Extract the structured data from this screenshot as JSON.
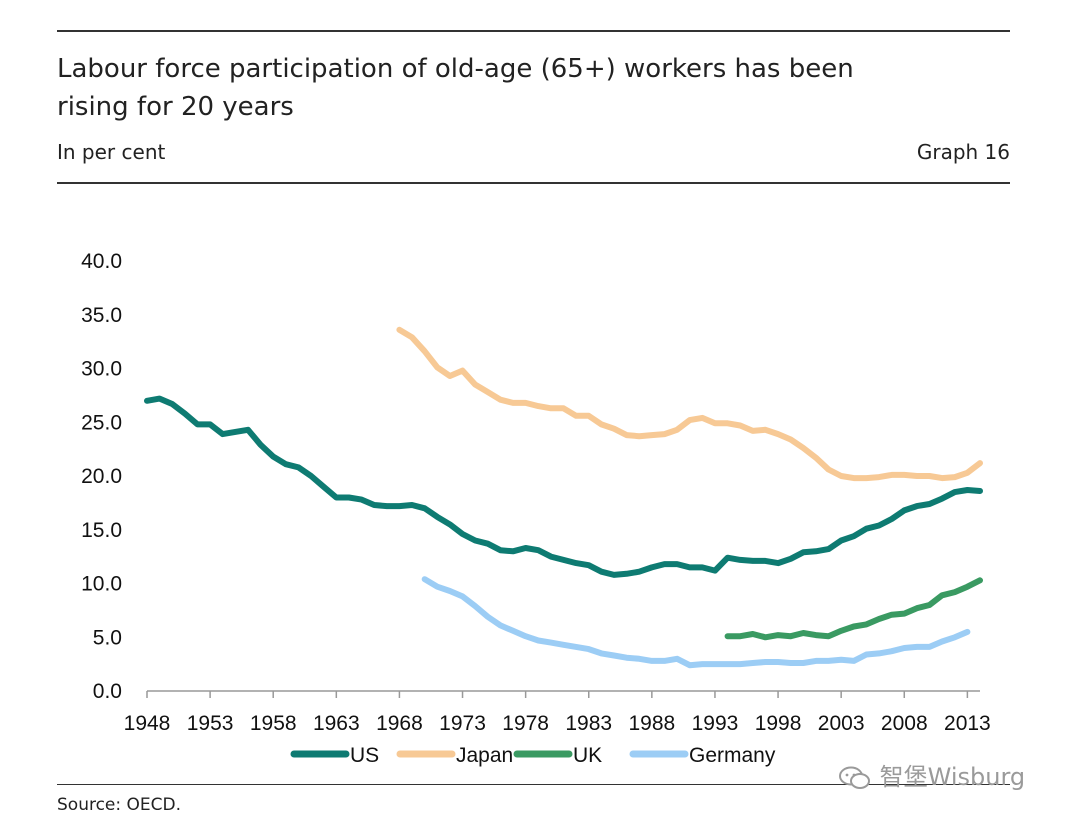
{
  "header": {
    "title": "Labour force participation of old-age (65+) workers has been rising for 20 years",
    "subtitle": "In per cent",
    "graph_number": "Graph 16"
  },
  "footer": {
    "source": "Source: OECD.",
    "watermark": "智堡Wisburg"
  },
  "chart_data": {
    "type": "line",
    "title": "Labour force participation of old-age (65+) workers has been rising for 20 years",
    "ylabel": "In per cent",
    "xlim": [
      1948,
      2014
    ],
    "ylim": [
      0,
      40
    ],
    "yticks": [
      "0.0",
      "5.0",
      "10.0",
      "15.0",
      "20.0",
      "25.0",
      "30.0",
      "35.0",
      "40.0"
    ],
    "xticks": [
      "1948",
      "1953",
      "1958",
      "1963",
      "1968",
      "1973",
      "1978",
      "1983",
      "1988",
      "1993",
      "1998",
      "2003",
      "2008",
      "2013"
    ],
    "legend_position": "bottom",
    "series": [
      {
        "name": "US",
        "color": "#0e7b72",
        "x": [
          1948,
          1949,
          1950,
          1951,
          1952,
          1953,
          1954,
          1955,
          1956,
          1957,
          1958,
          1959,
          1960,
          1961,
          1962,
          1963,
          1964,
          1965,
          1966,
          1967,
          1968,
          1969,
          1970,
          1971,
          1972,
          1973,
          1974,
          1975,
          1976,
          1977,
          1978,
          1979,
          1980,
          1981,
          1982,
          1983,
          1984,
          1985,
          1986,
          1987,
          1988,
          1989,
          1990,
          1991,
          1992,
          1993,
          1994,
          1995,
          1996,
          1997,
          1998,
          1999,
          2000,
          2001,
          2002,
          2003,
          2004,
          2005,
          2006,
          2007,
          2008,
          2009,
          2010,
          2011,
          2012,
          2013,
          2014
        ],
        "values": [
          27.0,
          27.2,
          26.7,
          25.8,
          24.8,
          24.8,
          23.9,
          24.1,
          24.3,
          22.9,
          21.8,
          21.1,
          20.8,
          20.0,
          19.0,
          18.0,
          18.0,
          17.8,
          17.3,
          17.2,
          17.2,
          17.3,
          17.0,
          16.2,
          15.5,
          14.6,
          14.0,
          13.7,
          13.1,
          13.0,
          13.3,
          13.1,
          12.5,
          12.2,
          11.9,
          11.7,
          11.1,
          10.8,
          10.9,
          11.1,
          11.5,
          11.8,
          11.8,
          11.5,
          11.5,
          11.2,
          12.4,
          12.2,
          12.1,
          12.1,
          11.9,
          12.3,
          12.9,
          13.0,
          13.2,
          14.0,
          14.4,
          15.1,
          15.4,
          16.0,
          16.8,
          17.2,
          17.4,
          17.9,
          18.5,
          18.7,
          18.6
        ]
      },
      {
        "name": "Japan",
        "color": "#f7c995",
        "x": [
          1968,
          1969,
          1970,
          1971,
          1972,
          1973,
          1974,
          1975,
          1976,
          1977,
          1978,
          1979,
          1980,
          1981,
          1982,
          1983,
          1984,
          1985,
          1986,
          1987,
          1988,
          1989,
          1990,
          1991,
          1992,
          1993,
          1994,
          1995,
          1996,
          1997,
          1998,
          1999,
          2000,
          2001,
          2002,
          2003,
          2004,
          2005,
          2006,
          2007,
          2008,
          2009,
          2010,
          2011,
          2012,
          2013,
          2014
        ],
        "values": [
          33.6,
          32.9,
          31.6,
          30.1,
          29.3,
          29.8,
          28.5,
          27.8,
          27.1,
          26.8,
          26.8,
          26.5,
          26.3,
          26.3,
          25.6,
          25.6,
          24.8,
          24.4,
          23.8,
          23.7,
          23.8,
          23.9,
          24.3,
          25.2,
          25.4,
          24.9,
          24.9,
          24.7,
          24.2,
          24.3,
          23.9,
          23.4,
          22.6,
          21.7,
          20.6,
          20.0,
          19.8,
          19.8,
          19.9,
          20.1,
          20.1,
          20.0,
          20.0,
          19.8,
          19.9,
          20.3,
          21.2
        ]
      },
      {
        "name": "UK",
        "color": "#3a9a62",
        "x": [
          1994,
          1995,
          1996,
          1997,
          1998,
          1999,
          2000,
          2001,
          2002,
          2003,
          2004,
          2005,
          2006,
          2007,
          2008,
          2009,
          2010,
          2011,
          2012,
          2013,
          2014
        ],
        "values": [
          5.1,
          5.1,
          5.3,
          5.0,
          5.2,
          5.1,
          5.4,
          5.2,
          5.1,
          5.6,
          6.0,
          6.2,
          6.7,
          7.1,
          7.2,
          7.7,
          8.0,
          8.9,
          9.2,
          9.7,
          10.3
        ]
      },
      {
        "name": "Germany",
        "color": "#9ccdf5",
        "x": [
          1970,
          1971,
          1972,
          1973,
          1974,
          1975,
          1976,
          1977,
          1978,
          1979,
          1980,
          1981,
          1982,
          1983,
          1984,
          1985,
          1986,
          1987,
          1988,
          1989,
          1990,
          1991,
          1992,
          1993,
          1994,
          1995,
          1996,
          1997,
          1998,
          1999,
          2000,
          2001,
          2002,
          2003,
          2004,
          2005,
          2006,
          2007,
          2008,
          2009,
          2010,
          2011,
          2012,
          2013
        ],
        "values": [
          10.4,
          9.7,
          9.3,
          8.8,
          7.9,
          6.9,
          6.1,
          5.6,
          5.1,
          4.7,
          4.5,
          4.3,
          4.1,
          3.9,
          3.5,
          3.3,
          3.1,
          3.0,
          2.8,
          2.8,
          3.0,
          2.4,
          2.5,
          2.5,
          2.5,
          2.5,
          2.6,
          2.7,
          2.7,
          2.6,
          2.6,
          2.8,
          2.8,
          2.9,
          2.8,
          3.4,
          3.5,
          3.7,
          4.0,
          4.1,
          4.1,
          4.6,
          5.0,
          5.5
        ]
      }
    ]
  }
}
